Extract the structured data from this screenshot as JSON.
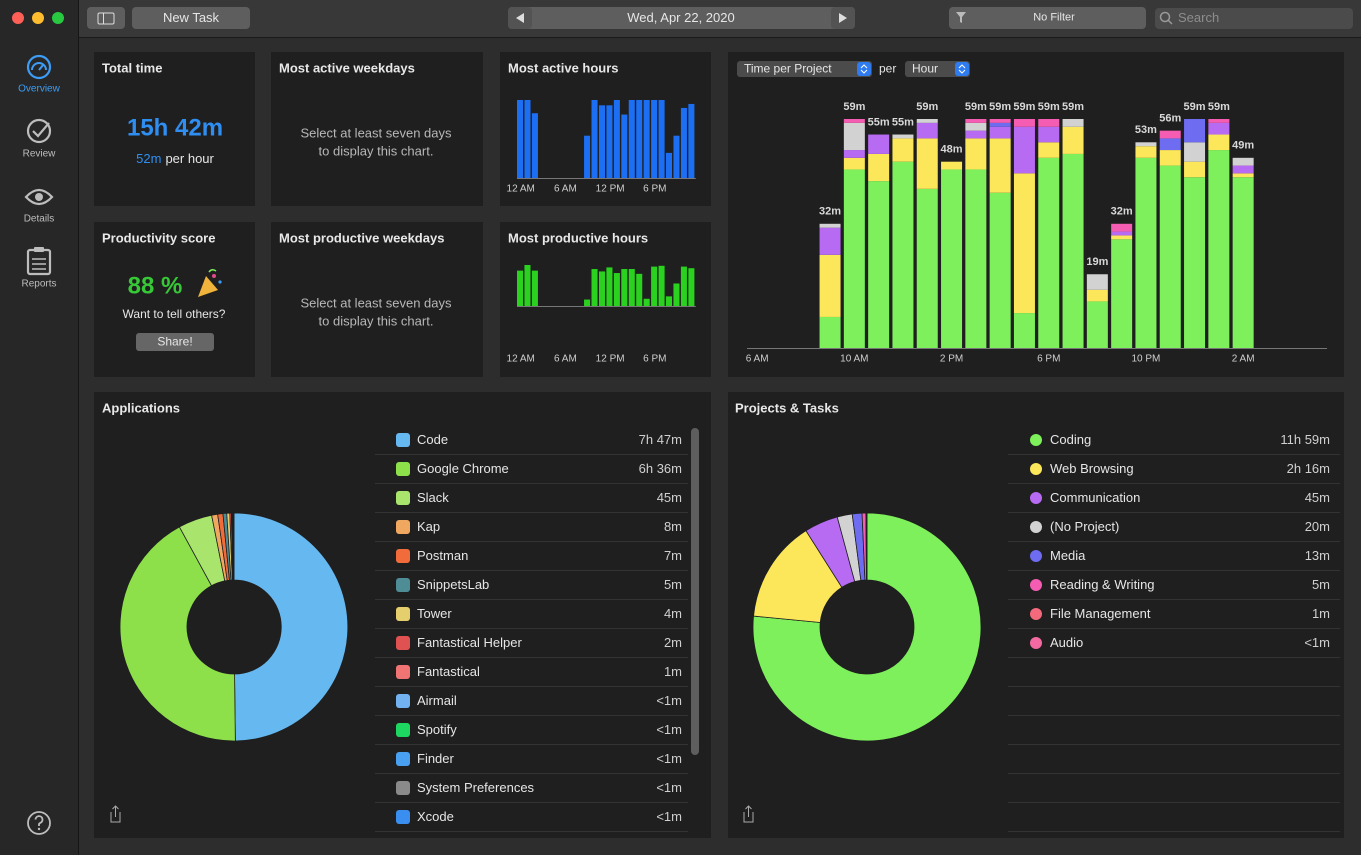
{
  "toolbar": {
    "new_task": "New Task",
    "date": "Wed, Apr 22, 2020",
    "filter": "No Filter",
    "search_placeholder": "Search"
  },
  "sidebar": [
    "Overview",
    "Review",
    "Details",
    "Reports"
  ],
  "total_time": {
    "title": "Total time",
    "value": "15h 42m",
    "rate": "52m",
    "rate_unit": "per hour"
  },
  "most_active_weekdays": {
    "title": "Most active weekdays",
    "message": [
      "Select at least seven days",
      "to display this chart."
    ]
  },
  "most_productive_weekdays": {
    "title": "Most productive weekdays",
    "message": [
      "Select at least seven days",
      "to display this chart."
    ]
  },
  "productivity_score": {
    "title": "Productivity score",
    "value": "88 %",
    "prompt": "Want to tell others?",
    "button": "Share!"
  },
  "most_active_hours": {
    "title": "Most active hours",
    "type": "bar",
    "color": "#1c6ef2",
    "categories": [
      "12 AM",
      null,
      null,
      null,
      null,
      null,
      "6 AM",
      null,
      null,
      null,
      null,
      null,
      "12 PM",
      null,
      null,
      null,
      null,
      null,
      "6 PM",
      null,
      null,
      null,
      null,
      null
    ],
    "values": [
      59,
      59,
      49,
      null,
      null,
      null,
      null,
      null,
      null,
      32,
      59,
      55,
      55,
      59,
      48,
      59,
      59,
      59,
      59,
      59,
      19,
      32,
      53,
      56
    ]
  },
  "most_productive_hours": {
    "title": "Most productive hours",
    "type": "bar",
    "color": "#2ad11f",
    "categories": [
      "12 AM",
      null,
      null,
      null,
      null,
      null,
      "6 AM",
      null,
      null,
      null,
      null,
      null,
      "12 PM",
      null,
      null,
      null,
      null,
      null,
      "6 PM",
      null,
      null,
      null,
      null,
      null
    ],
    "values": [
      44,
      51,
      44,
      null,
      null,
      null,
      null,
      null,
      null,
      8,
      46,
      43,
      48,
      41,
      46,
      46,
      40,
      9,
      49,
      50,
      12,
      28,
      49,
      47
    ]
  },
  "time_per_project": {
    "type": "stacked-bar",
    "selector": "Time per Project",
    "per": "per",
    "unit_selector": "Hour",
    "categories": [
      "6 AM",
      null,
      null,
      null,
      "10 AM",
      null,
      null,
      null,
      "2 PM",
      null,
      null,
      null,
      "6 PM",
      null,
      null,
      null,
      "10 PM",
      null,
      null,
      null,
      "2 AM",
      null,
      null,
      null
    ],
    "series": [
      {
        "color": "#7df05b",
        "values": [
          null,
          null,
          null,
          8,
          46,
          43,
          48,
          41,
          46,
          46,
          40,
          9,
          49,
          50,
          12,
          28,
          49,
          47,
          44,
          51,
          44,
          null,
          null,
          null
        ]
      },
      {
        "color": "#fce659",
        "values": [
          null,
          null,
          null,
          16,
          3,
          7,
          6,
          13,
          2,
          8,
          14,
          36,
          4,
          7,
          3,
          1,
          3,
          4,
          4,
          4,
          1,
          null,
          null,
          null
        ]
      },
      {
        "color": "#b76af2",
        "values": [
          null,
          null,
          null,
          7,
          2,
          5,
          0,
          4,
          0,
          2,
          3,
          12,
          4,
          0,
          0,
          1,
          0,
          0,
          0,
          3,
          2,
          null,
          null,
          null
        ]
      },
      {
        "color": "#d2d2d2",
        "values": [
          null,
          null,
          null,
          1,
          7,
          0,
          1,
          1,
          0,
          2,
          0,
          0,
          0,
          2,
          4,
          0,
          1,
          0,
          5,
          0,
          2,
          null,
          null,
          null
        ]
      },
      {
        "color": "#6e6cf0",
        "values": [
          null,
          null,
          null,
          0,
          0,
          0,
          0,
          0,
          0,
          0,
          1,
          0,
          0,
          0,
          0,
          0,
          0,
          3,
          6,
          0,
          0,
          null,
          null,
          null
        ]
      },
      {
        "color": "#f45db2",
        "values": [
          null,
          null,
          null,
          0,
          1,
          0,
          0,
          0,
          0,
          1,
          1,
          2,
          2,
          0,
          0,
          2,
          0,
          2,
          0,
          1,
          0,
          null,
          null,
          null
        ]
      }
    ],
    "totals": {
      "values": [
        null,
        null,
        null,
        32,
        59,
        55,
        55,
        59,
        48,
        59,
        59,
        59,
        59,
        59,
        19,
        32,
        53,
        56,
        59,
        59,
        49,
        null,
        null,
        null
      ],
      "value_labels": [
        null,
        null,
        null,
        "32m",
        "59m",
        "55m",
        "55m",
        "59m",
        "48m",
        "59m",
        "59m",
        "59m",
        "59m",
        "59m",
        "19m",
        "32m",
        "53m",
        "56m",
        "59m",
        "59m",
        "49m",
        null,
        null,
        null
      ]
    }
  },
  "applications": {
    "title": "Applications",
    "type": "donut",
    "rows": [
      {
        "name": "Code",
        "value": 467,
        "value_label": "7h 47m",
        "color": "#66b8f0"
      },
      {
        "name": "Google Chrome",
        "value": 396,
        "value_label": "6h 36m",
        "color": "#8ee04a"
      },
      {
        "name": "Slack",
        "value": 45,
        "value_label": "45m",
        "color": "#a9e46c"
      },
      {
        "name": "Kap",
        "value": 8,
        "value_label": "8m",
        "color": "#f0a860"
      },
      {
        "name": "Postman",
        "value": 7,
        "value_label": "7m",
        "color": "#f26b3a"
      },
      {
        "name": "SnippetsLab",
        "value": 5,
        "value_label": "5m",
        "color": "#4e8c96"
      },
      {
        "name": "Tower",
        "value": 4,
        "value_label": "4m",
        "color": "#e4cf6c"
      },
      {
        "name": "Fantastical Helper",
        "value": 2,
        "value_label": "2m",
        "color": "#e05252"
      },
      {
        "name": "Fantastical",
        "value": 1,
        "value_label": "1m",
        "color": "#f07474"
      },
      {
        "name": "Airmail",
        "value": 0.5,
        "value_label": "<1m",
        "color": "#72b2f0"
      },
      {
        "name": "Spotify",
        "value": 0.5,
        "value_label": "<1m",
        "color": "#1ed760"
      },
      {
        "name": "Finder",
        "value": 0.5,
        "value_label": "<1m",
        "color": "#4aa0f0"
      },
      {
        "name": "System Preferences",
        "value": 0.5,
        "value_label": "<1m",
        "color": "#8a8a8a"
      },
      {
        "name": "Xcode",
        "value": 0.5,
        "value_label": "<1m",
        "color": "#3a8ef0"
      }
    ]
  },
  "projects": {
    "title": "Projects & Tasks",
    "type": "donut",
    "rows": [
      {
        "name": "Coding",
        "value": 719,
        "value_label": "11h 59m",
        "color": "#7df05b"
      },
      {
        "name": "Web Browsing",
        "value": 136,
        "value_label": "2h 16m",
        "color": "#fce659"
      },
      {
        "name": "Communication",
        "value": 45,
        "value_label": "45m",
        "color": "#b76af2"
      },
      {
        "name": "(No Project)",
        "value": 20,
        "value_label": "20m",
        "color": "#d2d2d2"
      },
      {
        "name": "Media",
        "value": 13,
        "value_label": "13m",
        "color": "#6e6cf0"
      },
      {
        "name": "Reading & Writing",
        "value": 5,
        "value_label": "5m",
        "color": "#f45db2"
      },
      {
        "name": "File Management",
        "value": 1,
        "value_label": "1m",
        "color": "#f4697c"
      },
      {
        "name": "Audio",
        "value": 0.5,
        "value_label": "<1m",
        "color": "#f26aa1"
      }
    ]
  }
}
